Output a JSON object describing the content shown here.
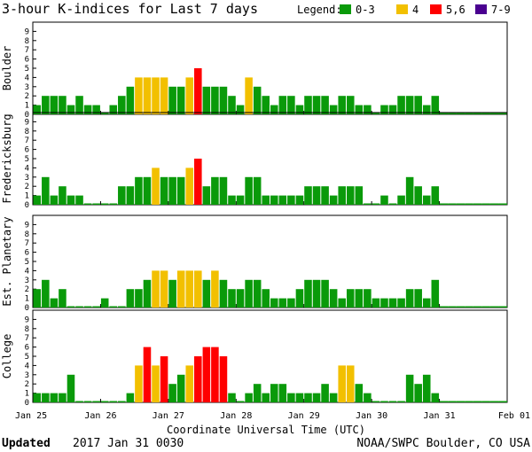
{
  "title": "3-hour K-indices for Last 7 days",
  "legend": {
    "label": "Legend:",
    "items": [
      {
        "label": "0-3",
        "color": "#0a9a0a"
      },
      {
        "label": "4",
        "color": "#f2c000"
      },
      {
        "label": "5,6",
        "color": "#ff0000"
      },
      {
        "label": "7-9",
        "color": "#4a0090"
      }
    ]
  },
  "footer": {
    "updated_label": "Updated",
    "updated_value": "2017 Jan 31 0030",
    "credit": "NOAA/SWPC Boulder, CO USA"
  },
  "chart_data": {
    "type": "bar",
    "xlabel": "Coordinate Universal Time (UTC)",
    "x_ticks": [
      "Jan 25",
      "Jan 26",
      "Jan 27",
      "Jan 28",
      "Jan 29",
      "Jan 30",
      "Jan 31",
      "Feb 01"
    ],
    "ylim": [
      0,
      9
    ],
    "y_ticks": [
      "0",
      "1",
      "2",
      "3",
      "4",
      "5",
      "6",
      "7",
      "8",
      "9"
    ],
    "color_scale": {
      "0-3": "#0a9a0a",
      "4": "#f2c000",
      "5,6": "#ff0000",
      "7-9": "#4a0090"
    },
    "panels": [
      {
        "name": "Boulder",
        "values": [
          1,
          2,
          2,
          2,
          1,
          2,
          1,
          1,
          0,
          1,
          2,
          3,
          4,
          4,
          4,
          4,
          3,
          3,
          4,
          5,
          3,
          3,
          3,
          2,
          1,
          4,
          3,
          2,
          1,
          2,
          2,
          1,
          2,
          2,
          2,
          1,
          2,
          2,
          1,
          1,
          0,
          1,
          1,
          2,
          2,
          2,
          1,
          2
        ]
      },
      {
        "name": "Fredericksburg",
        "values": [
          1,
          3,
          1,
          2,
          1,
          1,
          0,
          0,
          0,
          0,
          2,
          2,
          3,
          3,
          4,
          3,
          3,
          3,
          4,
          5,
          2,
          3,
          3,
          1,
          1,
          3,
          3,
          1,
          1,
          1,
          1,
          1,
          2,
          2,
          2,
          1,
          2,
          2,
          2,
          0,
          0,
          1,
          0,
          1,
          3,
          2,
          1,
          2
        ]
      },
      {
        "name": "Est. Planetary",
        "values": [
          2,
          3,
          1,
          2,
          0,
          0,
          0,
          0,
          1,
          0,
          0,
          2,
          2,
          3,
          4,
          4,
          3,
          4,
          4,
          4,
          3,
          4,
          3,
          2,
          2,
          3,
          3,
          2,
          1,
          1,
          1,
          2,
          3,
          3,
          3,
          2,
          1,
          2,
          2,
          2,
          1,
          1,
          1,
          1,
          2,
          2,
          1,
          3
        ]
      },
      {
        "name": "College",
        "values": [
          1,
          1,
          1,
          1,
          3,
          0,
          0,
          0,
          0,
          0,
          0,
          1,
          4,
          6,
          4,
          5,
          2,
          3,
          4,
          5,
          6,
          6,
          5,
          1,
          0,
          1,
          2,
          1,
          2,
          2,
          1,
          1,
          1,
          1,
          2,
          1,
          4,
          4,
          2,
          1,
          0,
          0,
          0,
          0,
          3,
          2,
          3,
          1
        ]
      }
    ]
  }
}
